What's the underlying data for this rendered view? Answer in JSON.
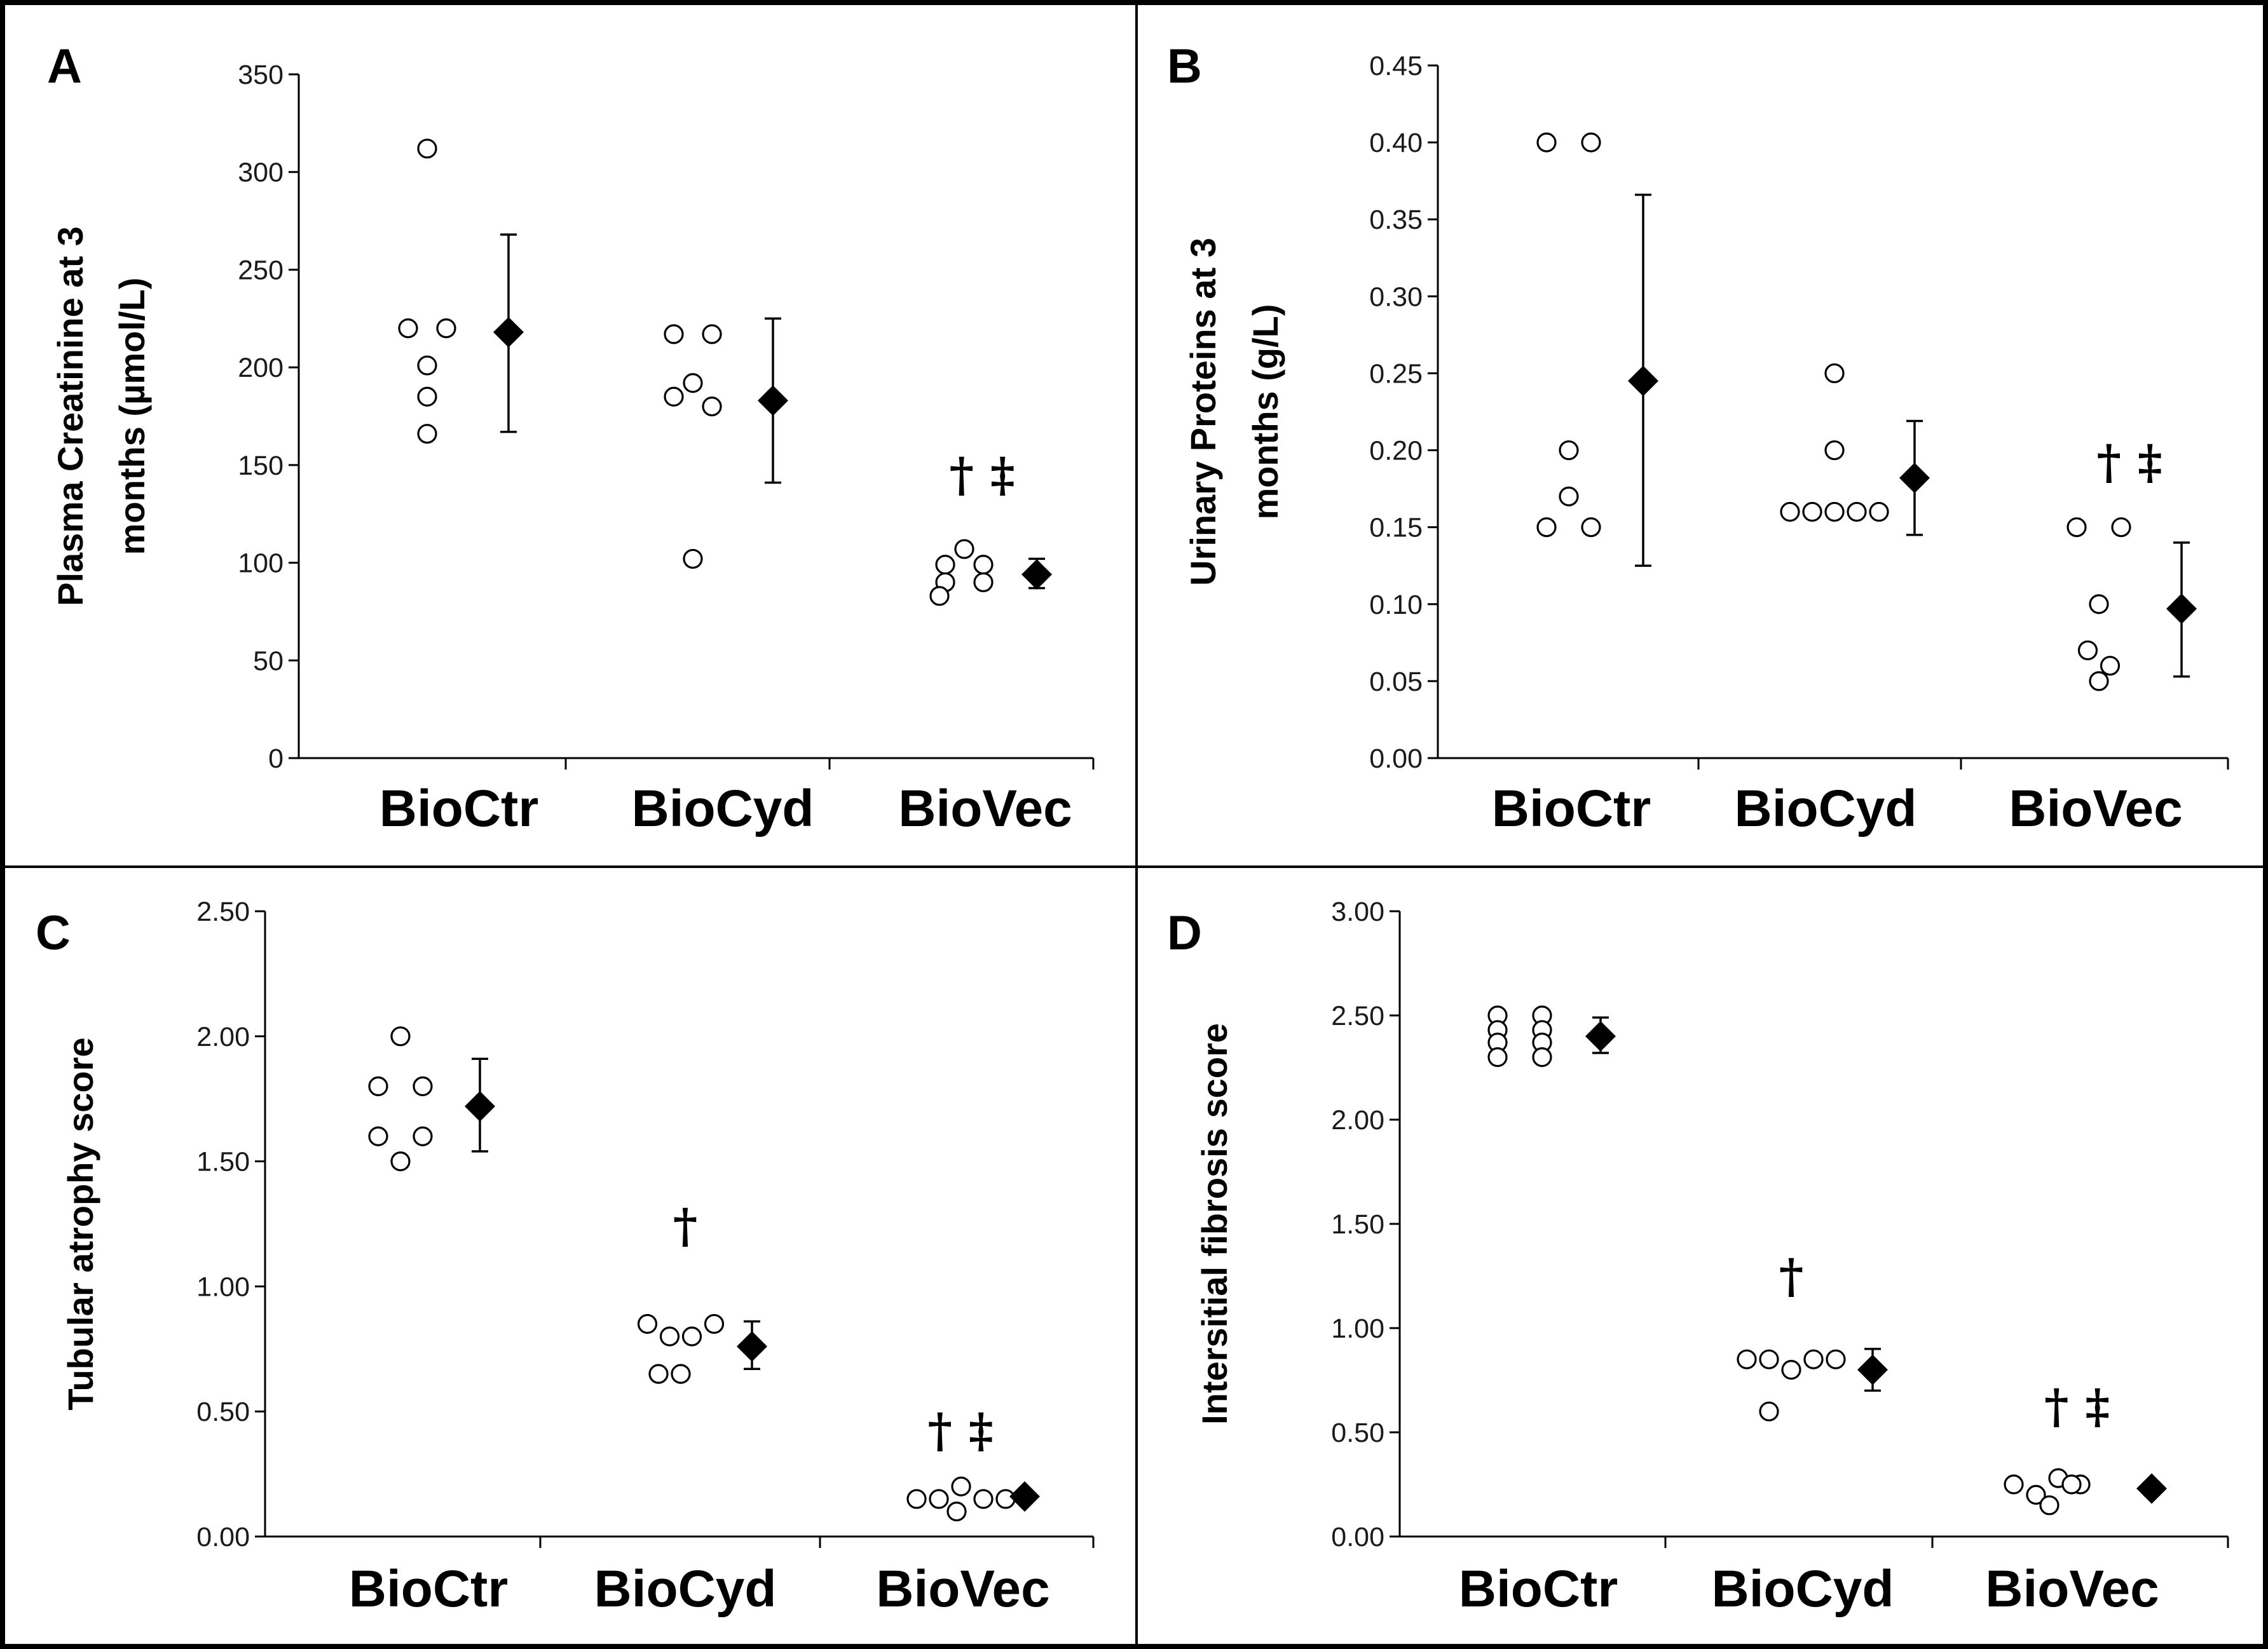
{
  "chart_data": [
    {
      "type": "scatter",
      "panel_label": "A",
      "title": "",
      "xlabel": "",
      "ylabel_lines": [
        "Plasma Creatinine at 3",
        "months (µmol/L)"
      ],
      "ylim": [
        0,
        350
      ],
      "yticks": [
        "0",
        "50",
        "100",
        "150",
        "200",
        "250",
        "300",
        "350"
      ],
      "categories": [
        "BioCtr",
        "BioCyd",
        "BioVec"
      ],
      "individual_points": [
        [
          {
            "x": -1,
            "y": 220
          },
          {
            "x": 1,
            "y": 220
          },
          {
            "x": 0,
            "y": 201
          },
          {
            "x": 0,
            "y": 185
          },
          {
            "x": 0,
            "y": 166
          },
          {
            "x": 0,
            "y": 312
          }
        ],
        [
          {
            "x": -1,
            "y": 217
          },
          {
            "x": 1,
            "y": 217
          },
          {
            "x": 0,
            "y": 192
          },
          {
            "x": -1,
            "y": 185
          },
          {
            "x": 1,
            "y": 180
          },
          {
            "x": 0,
            "y": 102
          }
        ],
        [
          {
            "x": 0,
            "y": 107
          },
          {
            "x": -1,
            "y": 99
          },
          {
            "x": 1,
            "y": 99
          },
          {
            "x": -1,
            "y": 90
          },
          {
            "x": 1,
            "y": 90
          },
          {
            "x": -1.3,
            "y": 83
          }
        ]
      ],
      "mean": [
        218,
        183,
        94
      ],
      "error_low": [
        167,
        141,
        87
      ],
      "error_high": [
        268,
        225,
        102
      ],
      "annotations": [
        "",
        "",
        "† ‡"
      ]
    },
    {
      "type": "scatter",
      "panel_label": "B",
      "title": "",
      "xlabel": "",
      "ylabel_lines": [
        "Urinary Proteins at 3",
        "months (g/L)"
      ],
      "ylim": [
        0,
        0.45
      ],
      "yticks": [
        "0.00",
        "0.05",
        "0.10",
        "0.15",
        "0.20",
        "0.25",
        "0.30",
        "0.35",
        "0.40",
        "0.45"
      ],
      "categories": [
        "BioCtr",
        "BioCyd",
        "BioVec"
      ],
      "individual_points": [
        [
          {
            "x": -1,
            "y": 0.4
          },
          {
            "x": 1,
            "y": 0.4
          },
          {
            "x": 0,
            "y": 0.2
          },
          {
            "x": 0,
            "y": 0.17
          },
          {
            "x": -1,
            "y": 0.15
          },
          {
            "x": 1,
            "y": 0.15
          }
        ],
        [
          {
            "x": 0,
            "y": 0.25
          },
          {
            "x": 0,
            "y": 0.2
          },
          {
            "x": -2,
            "y": 0.16
          },
          {
            "x": -1,
            "y": 0.16
          },
          {
            "x": 0,
            "y": 0.16
          },
          {
            "x": 1,
            "y": 0.16
          },
          {
            "x": 2,
            "y": 0.16
          }
        ],
        [
          {
            "x": -1,
            "y": 0.15
          },
          {
            "x": 1,
            "y": 0.15
          },
          {
            "x": 0,
            "y": 0.1
          },
          {
            "x": -0.5,
            "y": 0.07
          },
          {
            "x": 0.5,
            "y": 0.06
          },
          {
            "x": 0,
            "y": 0.05
          }
        ]
      ],
      "mean": [
        0.245,
        0.182,
        0.097
      ],
      "error_low": [
        0.125,
        0.145,
        0.053
      ],
      "error_high": [
        0.366,
        0.219,
        0.14
      ],
      "annotations": [
        "",
        "",
        "† ‡"
      ]
    },
    {
      "type": "scatter",
      "panel_label": "C",
      "title": "",
      "xlabel": "",
      "ylabel_lines": [
        "Tubular atrophy score"
      ],
      "ylim": [
        0,
        2.5
      ],
      "yticks": [
        "0.00",
        "0.50",
        "1.00",
        "1.50",
        "2.00",
        "2.50"
      ],
      "categories": [
        "BioCtr",
        "BioCyd",
        "BioVec"
      ],
      "individual_points": [
        [
          {
            "x": 0,
            "y": 2.0
          },
          {
            "x": -1,
            "y": 1.8
          },
          {
            "x": 1,
            "y": 1.8
          },
          {
            "x": -1,
            "y": 1.6
          },
          {
            "x": 1,
            "y": 1.6
          },
          {
            "x": 0,
            "y": 1.5
          }
        ],
        [
          {
            "x": -1.5,
            "y": 0.85
          },
          {
            "x": -0.5,
            "y": 0.8
          },
          {
            "x": 0.5,
            "y": 0.8
          },
          {
            "x": 1.5,
            "y": 0.85
          },
          {
            "x": -1,
            "y": 0.65
          },
          {
            "x": 0,
            "y": 0.65
          }
        ],
        [
          {
            "x": -2,
            "y": 0.15
          },
          {
            "x": -1,
            "y": 0.15
          },
          {
            "x": 0,
            "y": 0.2
          },
          {
            "x": 1,
            "y": 0.15
          },
          {
            "x": 2,
            "y": 0.15
          },
          {
            "x": -0.2,
            "y": 0.1
          }
        ]
      ],
      "mean": [
        1.72,
        0.76,
        0.16
      ],
      "error_low": [
        1.54,
        0.67,
        0.14
      ],
      "error_high": [
        1.91,
        0.86,
        0.18
      ],
      "annotations": [
        "",
        "†",
        "† ‡"
      ]
    },
    {
      "type": "scatter",
      "panel_label": "D",
      "title": "",
      "xlabel": "",
      "ylabel_lines": [
        "Intersitial fibrosis score"
      ],
      "ylim": [
        0,
        3.0
      ],
      "yticks": [
        "0.00",
        "0.50",
        "1.00",
        "1.50",
        "2.00",
        "2.50",
        "3.00"
      ],
      "categories": [
        "BioCtr",
        "BioCyd",
        "BioVec"
      ],
      "individual_points": [
        [
          {
            "x": -1,
            "y": 2.5
          },
          {
            "x": 1,
            "y": 2.5
          },
          {
            "x": -1,
            "y": 2.43
          },
          {
            "x": 1,
            "y": 2.43
          },
          {
            "x": -1,
            "y": 2.37
          },
          {
            "x": 1,
            "y": 2.37
          },
          {
            "x": -1,
            "y": 2.3
          },
          {
            "x": 1,
            "y": 2.3
          }
        ],
        [
          {
            "x": -2,
            "y": 0.85
          },
          {
            "x": -1,
            "y": 0.85
          },
          {
            "x": 0,
            "y": 0.8
          },
          {
            "x": 1,
            "y": 0.85
          },
          {
            "x": 2,
            "y": 0.85
          },
          {
            "x": -1,
            "y": 0.6
          }
        ],
        [
          {
            "x": -2,
            "y": 0.25
          },
          {
            "x": -1,
            "y": 0.2
          },
          {
            "x": 0,
            "y": 0.28
          },
          {
            "x": 1,
            "y": 0.25
          },
          {
            "x": -0.4,
            "y": 0.15
          },
          {
            "x": 0.6,
            "y": 0.25
          }
        ]
      ],
      "mean": [
        2.4,
        0.8,
        0.23
      ],
      "error_low": [
        2.32,
        0.7,
        0.2
      ],
      "error_high": [
        2.49,
        0.9,
        0.26
      ],
      "annotations": [
        "",
        "†",
        "† ‡"
      ]
    }
  ]
}
